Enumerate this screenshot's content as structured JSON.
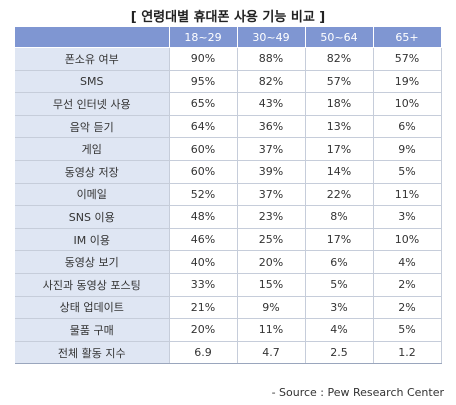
{
  "title": "[ 연령대별 휴대폰 사용 기능 비교 ]",
  "source": "- Source : Pew Research  Center",
  "chart_data": {
    "type": "table",
    "title": "[ 연령대별 휴대폰 사용 기능 비교 ]",
    "columns": [
      "18~29",
      "30~49",
      "50~64",
      "65+"
    ],
    "rows": [
      {
        "label": "폰소유 여부",
        "values": [
          "90%",
          "88%",
          "82%",
          "57%"
        ]
      },
      {
        "label": "SMS",
        "values": [
          "95%",
          "82%",
          "57%",
          "19%"
        ]
      },
      {
        "label": "무선 인터넷 사용",
        "values": [
          "65%",
          "43%",
          "18%",
          "10%"
        ]
      },
      {
        "label": "음악 듣기",
        "values": [
          "64%",
          "36%",
          "13%",
          "6%"
        ]
      },
      {
        "label": "게임",
        "values": [
          "60%",
          "37%",
          "17%",
          "9%"
        ]
      },
      {
        "label": "동영상 저장",
        "values": [
          "60%",
          "39%",
          "14%",
          "5%"
        ]
      },
      {
        "label": "이메일",
        "values": [
          "52%",
          "37%",
          "22%",
          "11%"
        ]
      },
      {
        "label": "SNS 이용",
        "values": [
          "48%",
          "23%",
          "8%",
          "3%"
        ]
      },
      {
        "label": "IM 이용",
        "values": [
          "46%",
          "25%",
          "17%",
          "10%"
        ]
      },
      {
        "label": "동영상 보기",
        "values": [
          "40%",
          "20%",
          "6%",
          "4%"
        ]
      },
      {
        "label": "사진과 동영상 포스팅",
        "values": [
          "33%",
          "15%",
          "5%",
          "2%"
        ]
      },
      {
        "label": "상태 업데이트",
        "values": [
          "21%",
          "9%",
          "3%",
          "2%"
        ]
      },
      {
        "label": "물품 구매",
        "values": [
          "20%",
          "11%",
          "4%",
          "5%"
        ]
      },
      {
        "label": "전체 활동 지수",
        "values": [
          "6.9",
          "4.7",
          "2.5",
          "1.2"
        ]
      }
    ],
    "colors": {
      "header": "#7f96d2",
      "label_cell": "#dfe6f3"
    }
  }
}
